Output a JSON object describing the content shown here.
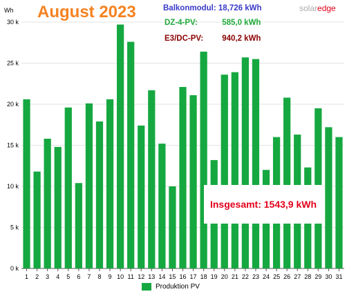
{
  "title": "August 2023",
  "unit_label": "Wh",
  "brand": {
    "part1": "solar",
    "part2": "edge"
  },
  "stats": [
    {
      "label": "Balkonmodul:",
      "value": "18,726 kWh",
      "color": "#3a3ac8"
    },
    {
      "label": "DZ-4-PV:",
      "value": "585,0 kWh",
      "color": "#1faa3a"
    },
    {
      "label": "E3/DC-PV:",
      "value": "940,2 kWh",
      "color": "#8b0000"
    }
  ],
  "total": "Insgesamt: 1543,9 kWh",
  "chart_data": {
    "type": "bar",
    "categories": [
      "1",
      "2",
      "3",
      "4",
      "5",
      "6",
      "7",
      "8",
      "9",
      "10",
      "11",
      "12",
      "13",
      "14",
      "15",
      "16",
      "17",
      "18",
      "19",
      "20",
      "21",
      "22",
      "23",
      "24",
      "25",
      "26",
      "27",
      "28",
      "29",
      "30",
      "31"
    ],
    "series": [
      {
        "name": "Produktion PV",
        "color": "#16a840",
        "values": [
          20600,
          11800,
          15800,
          14800,
          19600,
          10400,
          20100,
          17900,
          20600,
          29700,
          27600,
          17400,
          21700,
          15200,
          10000,
          22100,
          21100,
          26400,
          13200,
          23600,
          23900,
          25700,
          25500,
          12000,
          16000,
          20800,
          16300,
          12300,
          19500,
          17200,
          16000
        ]
      }
    ],
    "ylim": [
      0,
      30000
    ],
    "yticks": [
      0,
      5000,
      10000,
      15000,
      20000,
      25000,
      30000
    ],
    "ytick_labels": [
      "0 k",
      "5 k",
      "10 k",
      "15 k",
      "20 k",
      "25 k",
      "30 k"
    ],
    "grid": true,
    "legend_position": "bottom"
  }
}
